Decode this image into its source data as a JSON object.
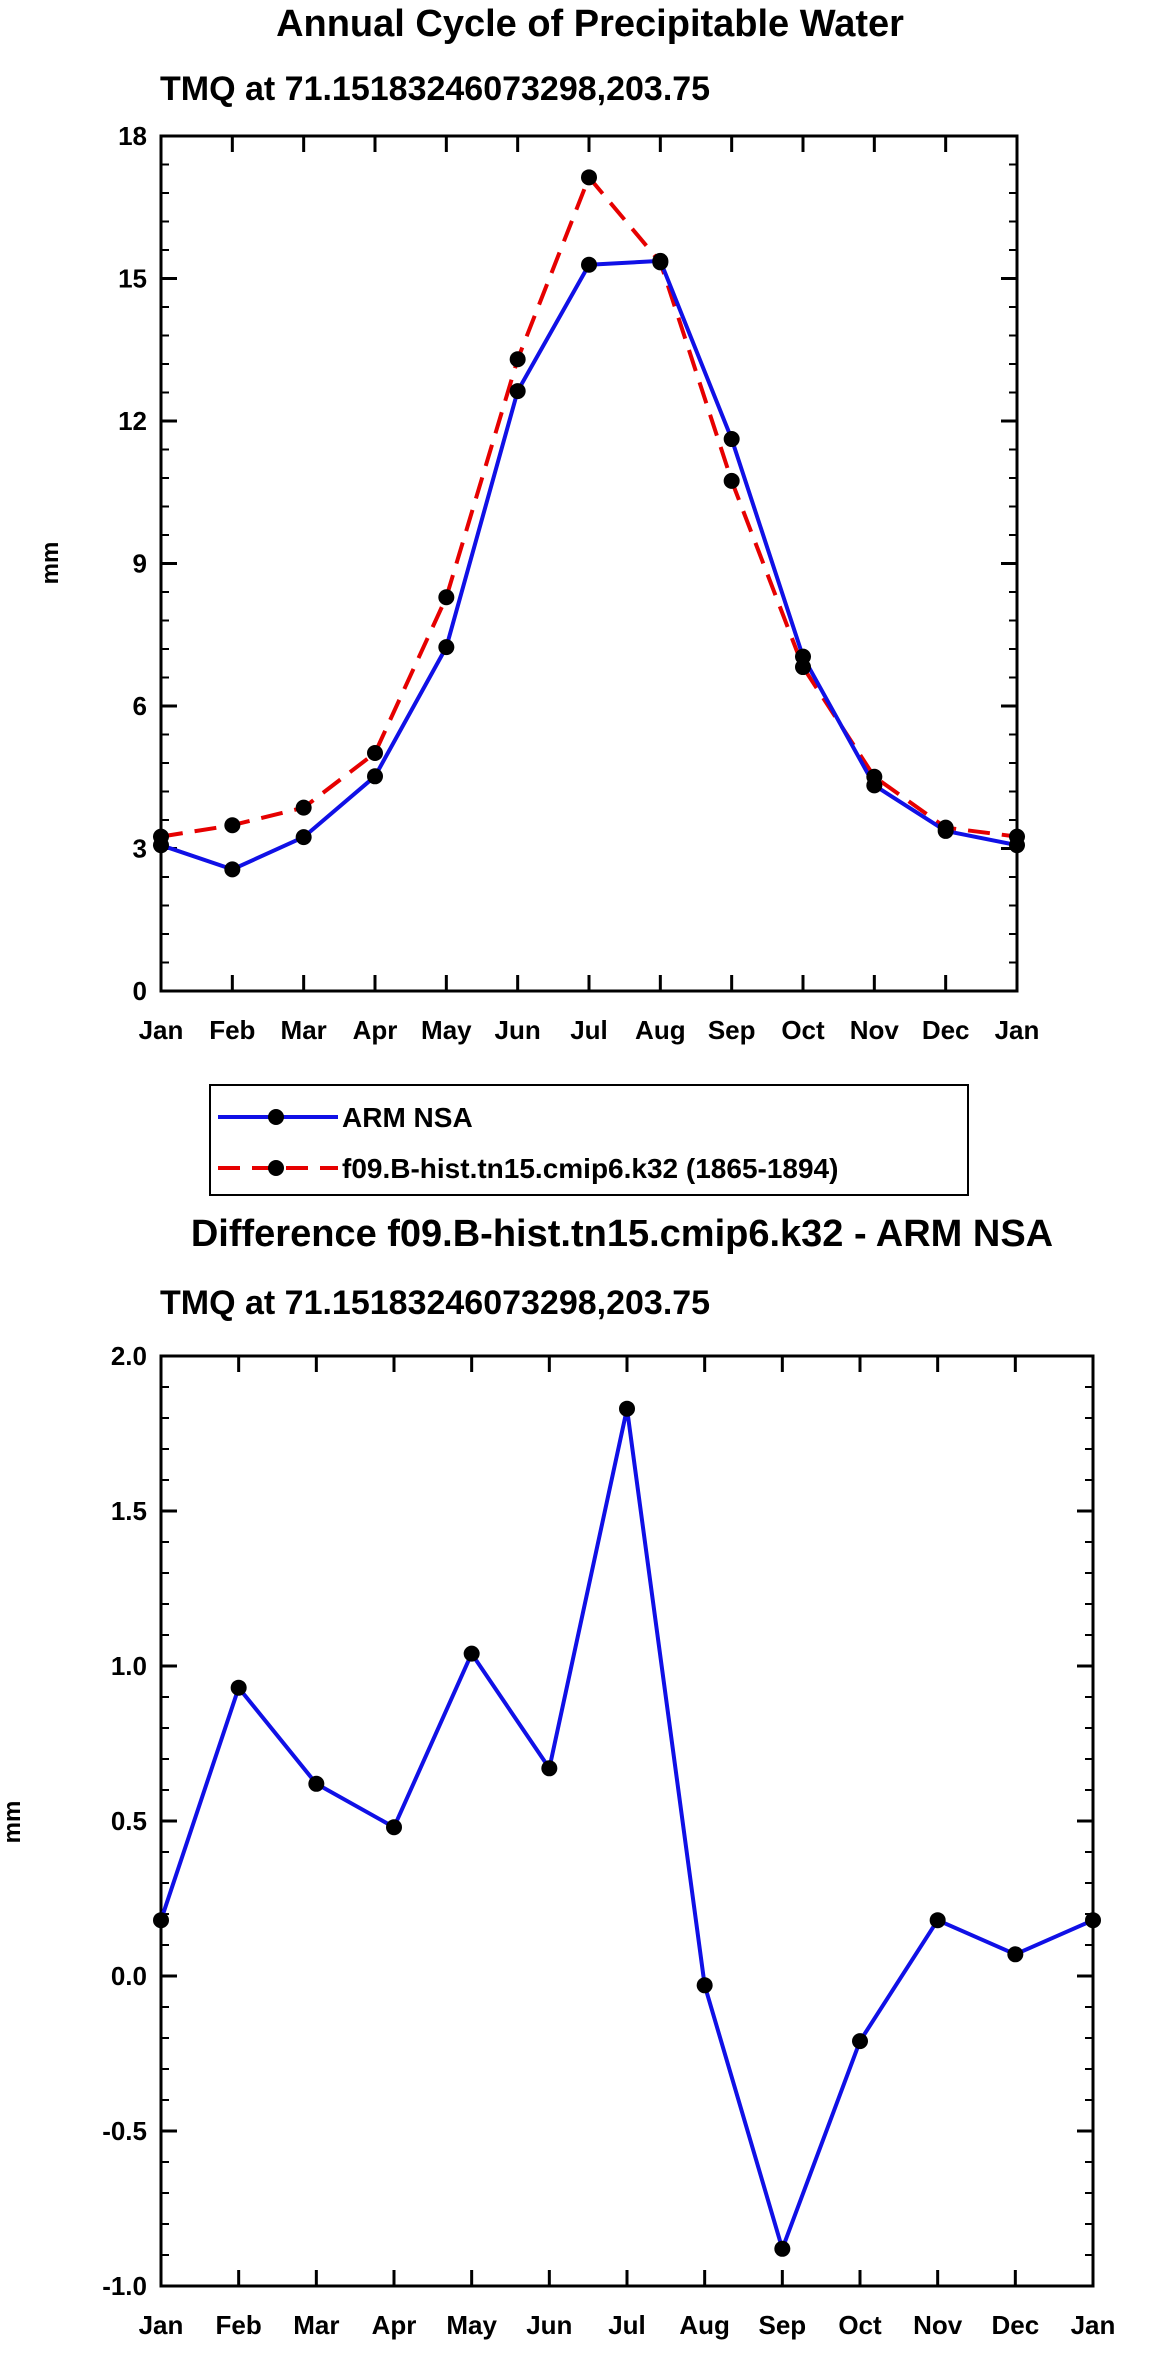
{
  "colors": {
    "obs": "#1010e6",
    "model": "#e60000",
    "marker": "#000000"
  },
  "chart_data": [
    {
      "type": "line",
      "title": "Annual Cycle of Precipitable Water",
      "subtitle": "TMQ at 71.15183246073298,203.75",
      "xlabel": "",
      "ylabel": "mm",
      "categories": [
        "Jan",
        "Feb",
        "Mar",
        "Apr",
        "May",
        "Jun",
        "Jul",
        "Aug",
        "Sep",
        "Oct",
        "Nov",
        "Dec",
        "Jan"
      ],
      "ylim": [
        0,
        18
      ],
      "yticks": [
        0,
        3,
        6,
        9,
        12,
        15,
        18
      ],
      "ytick_labels": [
        "0",
        "3",
        "6",
        "9",
        "12",
        "15",
        "18"
      ],
      "legend": "bottom",
      "series": [
        {
          "name": "ARM NSA",
          "style": "solid",
          "color": "#1010e6",
          "values": [
            3.07,
            2.56,
            3.24,
            4.52,
            7.24,
            12.63,
            15.29,
            15.37,
            11.62,
            7.04,
            4.33,
            3.37,
            3.07
          ]
        },
        {
          "name": "f09.B-hist.tn15.cmip6.k32 (1865-1894)",
          "style": "dashed",
          "color": "#e60000",
          "values": [
            3.25,
            3.49,
            3.86,
            5.01,
            8.29,
            13.3,
            17.13,
            15.34,
            10.74,
            6.82,
            4.51,
            3.44,
            3.25
          ]
        }
      ]
    },
    {
      "type": "line",
      "title": "Difference f09.B-hist.tn15.cmip6.k32 - ARM NSA",
      "subtitle": "TMQ at 71.15183246073298,203.75",
      "xlabel": "",
      "ylabel": "mm",
      "categories": [
        "Jan",
        "Feb",
        "Mar",
        "Apr",
        "May",
        "Jun",
        "Jul",
        "Aug",
        "Sep",
        "Oct",
        "Nov",
        "Dec",
        "Jan"
      ],
      "ylim": [
        -1.0,
        2.0
      ],
      "yticks": [
        -1.0,
        -0.5,
        0.0,
        0.5,
        1.0,
        1.5,
        2.0
      ],
      "ytick_labels": [
        "-1.0",
        "-0.5",
        "0.0",
        "0.5",
        "1.0",
        "1.5",
        "2.0"
      ],
      "series": [
        {
          "name": "Difference",
          "style": "solid",
          "color": "#1010e6",
          "values": [
            0.18,
            0.93,
            0.62,
            0.48,
            1.04,
            0.67,
            1.83,
            -0.03,
            -0.88,
            -0.21,
            0.18,
            0.07,
            0.18
          ]
        }
      ]
    }
  ]
}
